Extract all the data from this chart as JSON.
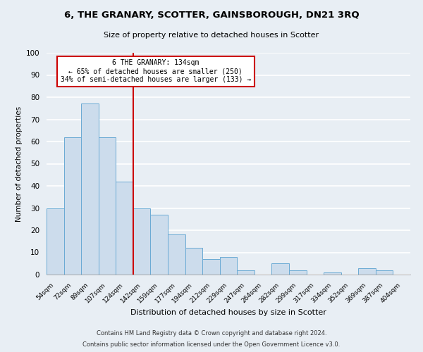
{
  "title": "6, THE GRANARY, SCOTTER, GAINSBOROUGH, DN21 3RQ",
  "subtitle": "Size of property relative to detached houses in Scotter",
  "xlabel": "Distribution of detached houses by size in Scotter",
  "ylabel": "Number of detached properties",
  "bin_labels": [
    "54sqm",
    "72sqm",
    "89sqm",
    "107sqm",
    "124sqm",
    "142sqm",
    "159sqm",
    "177sqm",
    "194sqm",
    "212sqm",
    "229sqm",
    "247sqm",
    "264sqm",
    "282sqm",
    "299sqm",
    "317sqm",
    "334sqm",
    "352sqm",
    "369sqm",
    "387sqm",
    "404sqm"
  ],
  "bar_heights": [
    30,
    62,
    77,
    62,
    42,
    30,
    27,
    18,
    12,
    7,
    8,
    2,
    0,
    5,
    2,
    0,
    1,
    0,
    3,
    2,
    0
  ],
  "bar_color": "#ccdcec",
  "bar_edge_color": "#6aaad4",
  "property_line_label": "6 THE GRANARY: 134sqm",
  "annotation_line1": "← 65% of detached houses are smaller (250)",
  "annotation_line2": "34% of semi-detached houses are larger (133) →",
  "annotation_box_color": "#ffffff",
  "annotation_box_edge_color": "#cc0000",
  "vline_color": "#cc0000",
  "vline_x": 5.0,
  "ylim": [
    0,
    100
  ],
  "yticks": [
    0,
    10,
    20,
    30,
    40,
    50,
    60,
    70,
    80,
    90,
    100
  ],
  "footnote1": "Contains HM Land Registry data © Crown copyright and database right 2024.",
  "footnote2": "Contains public sector information licensed under the Open Government Licence v3.0.",
  "bg_color": "#e8eef4",
  "plot_bg_color": "#e8eef4",
  "grid_color": "#ffffff"
}
